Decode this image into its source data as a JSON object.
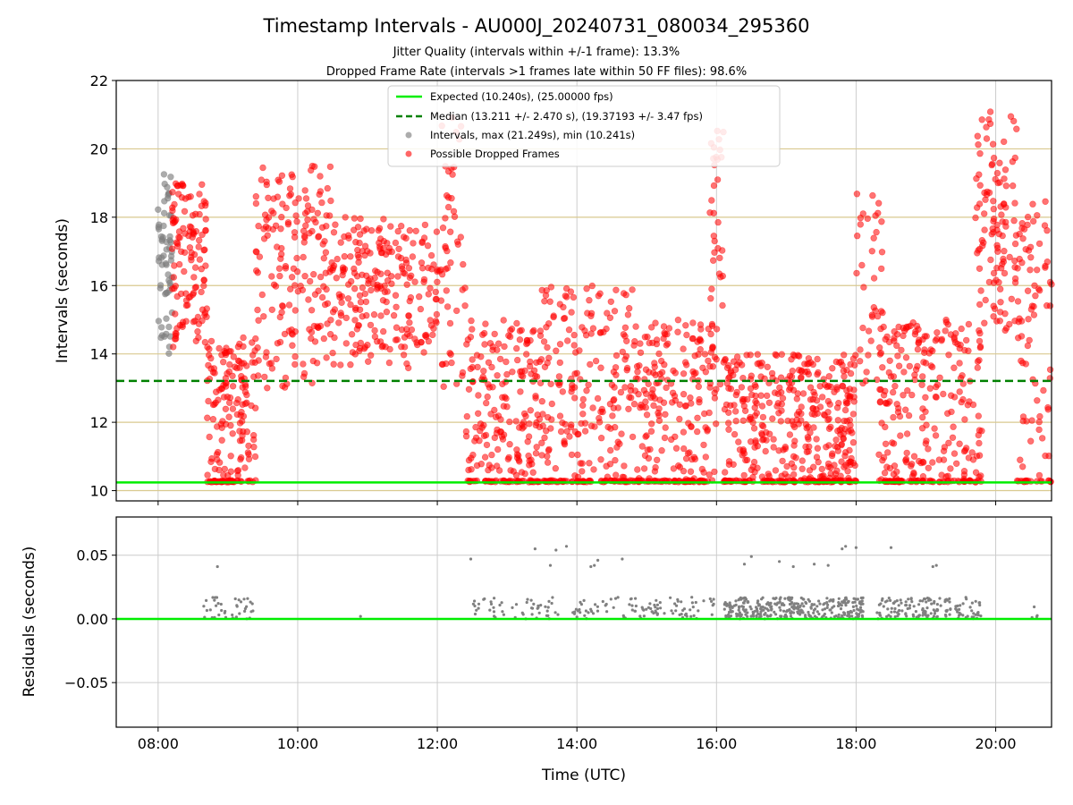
{
  "chart_data": [
    {
      "type": "scatter",
      "title": "Timestamp Intervals - AU000J_20240731_080034_295360",
      "subtitles": [
        "Jitter Quality (intervals within +/-1 frame): 13.3%",
        "Dropped Frame Rate (intervals >1 frames late within 50 FF files): 98.6%"
      ],
      "xlabel": "",
      "ylabel": "Intervals (seconds)",
      "x_unit": "hours UTC",
      "xlim": [
        7.4,
        20.8
      ],
      "ylim": [
        9.7,
        22
      ],
      "yticks": [
        10,
        12,
        14,
        16,
        18,
        20,
        22
      ],
      "grid": true,
      "gold_gridlines": [
        10,
        12,
        14,
        16,
        18,
        20
      ],
      "legend_position": "upper center",
      "legend": [
        {
          "label": "Expected (10.240s), (25.00000 fps)",
          "style": "solid-line",
          "color": "#00ee00"
        },
        {
          "label": "Median (13.211 +/- 2.470 s), (19.37193 +/- 3.47 fps)",
          "style": "dashed-line",
          "color": "#008000"
        },
        {
          "label": "Intervals, max (21.249s), min (10.241s)",
          "style": "marker",
          "color": "#808080"
        },
        {
          "label": "Possible Dropped Frames",
          "style": "marker",
          "color": "#ff0000"
        }
      ],
      "reference_lines": {
        "expected": 10.24,
        "median": 13.211
      },
      "series": [
        {
          "name": "Intervals, max (21.249s), min (10.241s)",
          "color": "#808080",
          "clusters": [
            [
              8.0,
              8.2,
              14.0,
              19.3,
              60
            ]
          ]
        },
        {
          "name": "Possible Dropped Frames",
          "color": "#ff0000",
          "clusters": [
            [
              8.2,
              8.7,
              14.2,
              19.0,
              120
            ],
            [
              8.7,
              9.4,
              10.25,
              14.5,
              180
            ],
            [
              9.4,
              10.5,
              13.0,
              19.5,
              180
            ],
            [
              10.5,
              12.0,
              13.5,
              18.0,
              230
            ],
            [
              12.0,
              12.4,
              13.0,
              21.0,
              50
            ],
            [
              12.4,
              13.5,
              10.25,
              15.0,
              220
            ],
            [
              13.5,
              14.8,
              10.25,
              16.0,
              240
            ],
            [
              14.8,
              16.0,
              10.25,
              15.0,
              240
            ],
            [
              15.9,
              16.1,
              13.0,
              20.6,
              40
            ],
            [
              16.1,
              17.5,
              10.25,
              14.0,
              300
            ],
            [
              17.5,
              18.0,
              10.25,
              14.0,
              140
            ],
            [
              18.0,
              18.4,
              13.0,
              19.0,
              40
            ],
            [
              18.3,
              19.8,
              10.25,
              15.0,
              280
            ],
            [
              19.7,
              20.3,
              14.5,
              21.2,
              110
            ],
            [
              20.3,
              20.8,
              10.25,
              18.5,
              90
            ]
          ]
        }
      ]
    },
    {
      "type": "scatter",
      "title": "",
      "xlabel": "Time (UTC)",
      "ylabel": "Residuals (seconds)",
      "x_unit": "hours UTC",
      "xlim": [
        7.4,
        20.8
      ],
      "ylim": [
        -0.085,
        0.08
      ],
      "yticks": [
        -0.05,
        0.0,
        0.05
      ],
      "ytick_labels": [
        "−0.05",
        "0.00",
        "0.05"
      ],
      "xticks": [
        8,
        10,
        12,
        14,
        16,
        18,
        20
      ],
      "xtick_labels": [
        "08:00",
        "10:00",
        "12:00",
        "14:00",
        "16:00",
        "18:00",
        "20:00"
      ],
      "grid": true,
      "zero_line_color": "#00ee00",
      "series": [
        {
          "name": "",
          "color": "#808080",
          "clusters": [
            [
              8.65,
              9.4,
              0.0,
              0.017,
              40
            ],
            [
              12.5,
              14.6,
              0.0,
              0.017,
              80
            ],
            [
              14.6,
              16.0,
              0.0,
              0.017,
              70
            ],
            [
              16.1,
              18.1,
              0.0,
              0.017,
              320
            ],
            [
              18.3,
              19.8,
              0.0,
              0.017,
              150
            ],
            [
              20.5,
              20.6,
              0.0,
              0.012,
              4
            ]
          ],
          "points": [
            [
              8.85,
              0.041
            ],
            [
              10.9,
              0.002
            ],
            [
              12.48,
              0.047
            ],
            [
              13.4,
              0.055
            ],
            [
              13.62,
              0.042
            ],
            [
              13.7,
              0.054
            ],
            [
              13.85,
              0.057
            ],
            [
              14.2,
              0.041
            ],
            [
              14.25,
              0.042
            ],
            [
              14.3,
              0.046
            ],
            [
              14.65,
              0.047
            ],
            [
              16.4,
              0.043
            ],
            [
              16.5,
              0.049
            ],
            [
              16.9,
              0.045
            ],
            [
              17.1,
              0.041
            ],
            [
              17.4,
              0.043
            ],
            [
              17.6,
              0.042
            ],
            [
              17.8,
              0.055
            ],
            [
              17.85,
              0.057
            ],
            [
              18.0,
              0.056
            ],
            [
              18.5,
              0.056
            ],
            [
              19.1,
              0.041
            ],
            [
              19.15,
              0.042
            ]
          ]
        }
      ]
    }
  ]
}
